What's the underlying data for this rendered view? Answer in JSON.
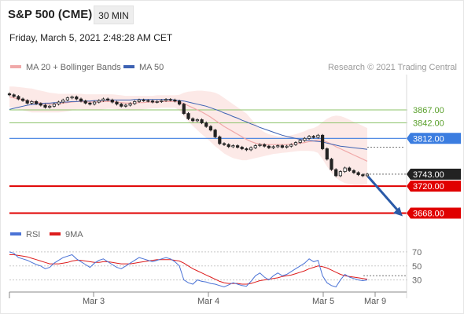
{
  "header": {
    "title": "S&P 500 (CME)",
    "interval": "30 MIN",
    "datetime": "Friday, March 5, 2021 2:48:28 AM CET"
  },
  "copyright": "Research © 2021 Trading Central",
  "colors": {
    "ma20": "#f0a9a9",
    "ma50": "#3d62b3",
    "resistance": "#8cc36a",
    "pivot": "#3b7de0",
    "support": "#e00000",
    "last": "#222222",
    "rsi": "#4b73d6",
    "rsi_ma": "#dd1c1c",
    "arrow": "#2a5aa8"
  },
  "chart_data": [
    {
      "type": "line",
      "title": "",
      "legend": [
        {
          "name": "MA 20 + Bollinger Bands",
          "color": "#f0a9a9"
        },
        {
          "name": "MA 50",
          "color": "#3d62b3"
        }
      ],
      "legend_placement": "top-left",
      "x_ticks": [
        "Mar 3",
        "Mar 4",
        "Mar 5",
        "Mar 9"
      ],
      "ylim": [
        3640,
        3935
      ],
      "y_axis": "right",
      "price_levels": [
        {
          "label": "3867.00",
          "value": 3867,
          "kind": "resistance"
        },
        {
          "label": "3842.00",
          "value": 3842,
          "kind": "resistance"
        },
        {
          "label": "3812.00",
          "value": 3812,
          "kind": "pivot"
        },
        {
          "label": "3743.00",
          "value": 3743,
          "kind": "last"
        },
        {
          "label": "3720.00",
          "value": 3720,
          "kind": "support"
        },
        {
          "label": "3668.00",
          "value": 3668,
          "kind": "support"
        }
      ],
      "close": [
        3896,
        3893,
        3888,
        3885,
        3880,
        3883,
        3879,
        3876,
        3872,
        3874,
        3878,
        3882,
        3886,
        3890,
        3892,
        3888,
        3884,
        3880,
        3878,
        3882,
        3885,
        3888,
        3886,
        3882,
        3878,
        3874,
        3876,
        3879,
        3883,
        3886,
        3885,
        3884,
        3882,
        3883,
        3885,
        3887,
        3886,
        3884,
        3878,
        3860,
        3850,
        3846,
        3848,
        3842,
        3835,
        3828,
        3815,
        3802,
        3800,
        3796,
        3798,
        3795,
        3792,
        3790,
        3794,
        3798,
        3800,
        3797,
        3794,
        3796,
        3798,
        3795,
        3797,
        3800,
        3804,
        3808,
        3812,
        3816,
        3814,
        3818,
        3792,
        3772,
        3752,
        3740,
        3748,
        3755,
        3750,
        3746,
        3742,
        3740,
        3743
      ],
      "ma20": [
        3892,
        3890,
        3888,
        3886,
        3885,
        3883,
        3882,
        3880,
        3879,
        3878,
        3878,
        3879,
        3880,
        3881,
        3882,
        3883,
        3883,
        3882,
        3882,
        3882,
        3882,
        3883,
        3883,
        3883,
        3882,
        3881,
        3880,
        3880,
        3880,
        3881,
        3881,
        3882,
        3882,
        3882,
        3883,
        3883,
        3883,
        3883,
        3882,
        3879,
        3875,
        3871,
        3867,
        3863,
        3858,
        3853,
        3847,
        3841,
        3835,
        3830,
        3825,
        3820,
        3815,
        3810,
        3806,
        3803,
        3801,
        3800,
        3800,
        3800,
        3800,
        3800,
        3800,
        3801,
        3802,
        3803,
        3804,
        3806,
        3807,
        3809,
        3808,
        3805,
        3801,
        3796,
        3792,
        3788,
        3784,
        3780,
        3776,
        3772,
        3768
      ],
      "bb_upper": [
        3912,
        3912,
        3911,
        3910,
        3909,
        3908,
        3906,
        3904,
        3902,
        3900,
        3899,
        3898,
        3898,
        3898,
        3898,
        3898,
        3898,
        3897,
        3897,
        3897,
        3897,
        3897,
        3897,
        3897,
        3896,
        3895,
        3894,
        3894,
        3894,
        3894,
        3894,
        3894,
        3894,
        3895,
        3895,
        3895,
        3895,
        3895,
        3896,
        3900,
        3902,
        3903,
        3904,
        3904,
        3903,
        3902,
        3900,
        3896,
        3890,
        3884,
        3878,
        3872,
        3866,
        3860,
        3850,
        3840,
        3830,
        3824,
        3820,
        3818,
        3816,
        3816,
        3816,
        3818,
        3820,
        3823,
        3826,
        3830,
        3832,
        3836,
        3844,
        3850,
        3854,
        3856,
        3855,
        3852,
        3848,
        3844,
        3840,
        3836,
        3832
      ],
      "bb_lower": [
        3872,
        3870,
        3868,
        3866,
        3864,
        3862,
        3862,
        3862,
        3862,
        3862,
        3862,
        3862,
        3863,
        3864,
        3866,
        3868,
        3868,
        3867,
        3867,
        3867,
        3867,
        3868,
        3869,
        3869,
        3868,
        3867,
        3866,
        3866,
        3866,
        3867,
        3868,
        3869,
        3870,
        3870,
        3871,
        3871,
        3871,
        3871,
        3866,
        3855,
        3845,
        3836,
        3828,
        3820,
        3813,
        3805,
        3797,
        3790,
        3783,
        3778,
        3774,
        3772,
        3770,
        3770,
        3772,
        3774,
        3776,
        3778,
        3780,
        3782,
        3783,
        3784,
        3785,
        3786,
        3787,
        3788,
        3788,
        3788,
        3787,
        3784,
        3772,
        3758,
        3746,
        3736,
        3730,
        3726,
        3724,
        3722,
        3722,
        3722,
        3724
      ],
      "ma50": [
        3868,
        3870,
        3872,
        3874,
        3876,
        3877,
        3878,
        3879,
        3880,
        3880,
        3881,
        3881,
        3882,
        3882,
        3883,
        3883,
        3884,
        3884,
        3884,
        3885,
        3885,
        3885,
        3886,
        3886,
        3886,
        3886,
        3886,
        3886,
        3887,
        3887,
        3887,
        3887,
        3887,
        3887,
        3887,
        3887,
        3887,
        3886,
        3885,
        3884,
        3882,
        3880,
        3878,
        3876,
        3874,
        3871,
        3868,
        3865,
        3861,
        3858,
        3854,
        3851,
        3847,
        3844,
        3840,
        3837,
        3833,
        3830,
        3827,
        3824,
        3821,
        3818,
        3816,
        3814,
        3812,
        3810,
        3809,
        3808,
        3807,
        3806,
        3805,
        3803,
        3801,
        3799,
        3797,
        3796,
        3795,
        3794,
        3793,
        3792,
        3791
      ],
      "forecast_arrow": {
        "from": 3743,
        "to": 3668
      }
    },
    {
      "type": "line",
      "title": "",
      "legend": [
        {
          "name": "RSI",
          "color": "#4b73d6"
        },
        {
          "name": "9MA",
          "color": "#dd1c1c"
        }
      ],
      "legend_placement": "top-left",
      "y_ticks": [
        "70",
        "50",
        "30"
      ],
      "ylim": [
        15,
        80
      ],
      "rsi": [
        70,
        68,
        62,
        60,
        58,
        55,
        52,
        50,
        46,
        48,
        54,
        58,
        62,
        64,
        66,
        60,
        56,
        52,
        48,
        54,
        58,
        60,
        56,
        52,
        48,
        46,
        50,
        54,
        58,
        62,
        60,
        58,
        56,
        58,
        60,
        62,
        60,
        56,
        50,
        30,
        26,
        24,
        30,
        28,
        27,
        25,
        24,
        22,
        20,
        23,
        26,
        24,
        22,
        21,
        28,
        36,
        40,
        34,
        30,
        36,
        40,
        36,
        38,
        42,
        46,
        50,
        54,
        60,
        56,
        58,
        36,
        26,
        22,
        20,
        30,
        38,
        34,
        32,
        30,
        29,
        30
      ],
      "rsi_ma": [
        66,
        66,
        65,
        64,
        63,
        61,
        59,
        57,
        55,
        53,
        53,
        53,
        54,
        55,
        57,
        58,
        58,
        57,
        56,
        55,
        55,
        56,
        56,
        55,
        54,
        53,
        53,
        53,
        54,
        55,
        56,
        57,
        58,
        59,
        59,
        59,
        59,
        58,
        57,
        54,
        50,
        46,
        43,
        40,
        37,
        34,
        31,
        28,
        26,
        25,
        25,
        25,
        24,
        24,
        25,
        27,
        29,
        30,
        31,
        32,
        33,
        35,
        36,
        37,
        39,
        41,
        43,
        46,
        48,
        50,
        49,
        47,
        44,
        41,
        38,
        36,
        35,
        34,
        33,
        32,
        31
      ]
    }
  ]
}
